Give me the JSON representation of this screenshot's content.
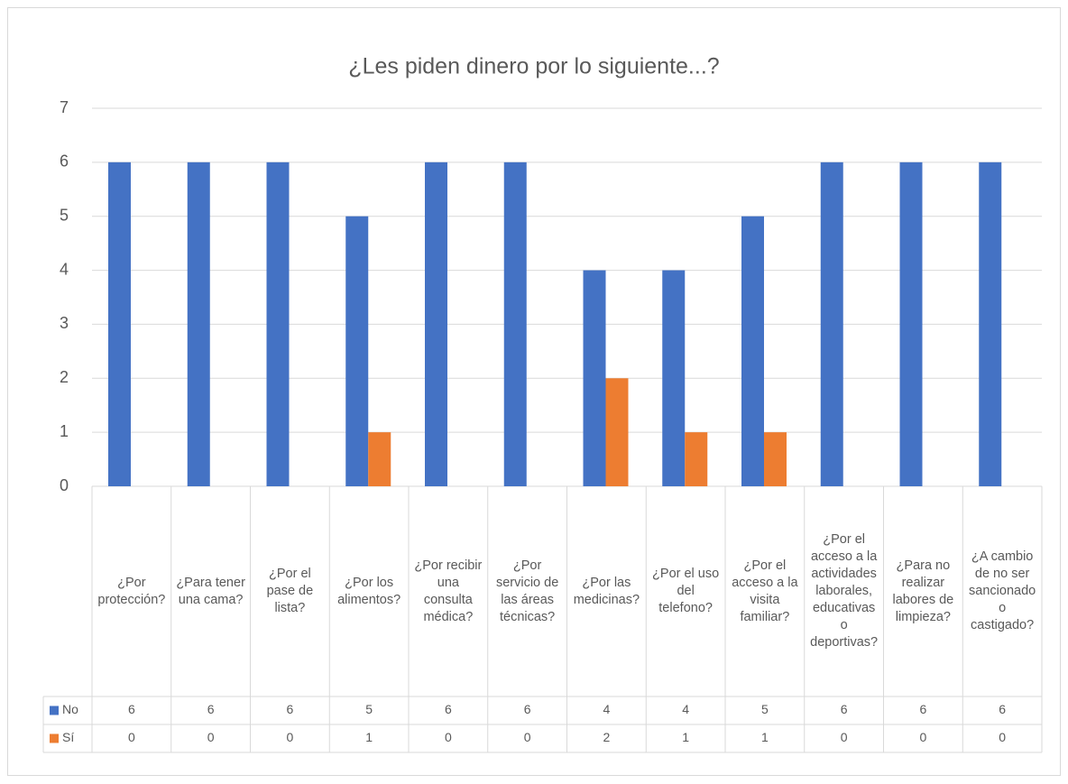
{
  "chart_data": {
    "type": "bar",
    "title": "¿Les piden dinero por lo siguiente...?",
    "categories": [
      "¿Por protección?",
      "¿Para tener una cama?",
      "¿Por el pase de lista?",
      "¿Por los alimentos?",
      "¿Por recibir una consulta médica?",
      "¿Por servicio de las áreas técnicas?",
      "¿Por las medicinas?",
      "¿Por el uso del telefono?",
      "¿Por el acceso a la visita familiar?",
      "¿Por el acceso a la actividades laborales, educativas o deportivas?",
      "¿Para no realizar labores de limpieza?",
      "¿A cambio de no ser sancionado o castigado?"
    ],
    "series": [
      {
        "name": "No",
        "color": "#4472c4",
        "values": [
          6,
          6,
          6,
          5,
          6,
          6,
          4,
          4,
          5,
          6,
          6,
          6
        ]
      },
      {
        "name": "Sí",
        "color": "#ed7d31",
        "values": [
          0,
          0,
          0,
          1,
          0,
          0,
          2,
          1,
          1,
          0,
          0,
          0
        ]
      }
    ],
    "ylim": [
      0,
      7
    ],
    "yticks": [
      0,
      1,
      2,
      3,
      4,
      5,
      6,
      7
    ],
    "grid": true,
    "data_table": true
  }
}
